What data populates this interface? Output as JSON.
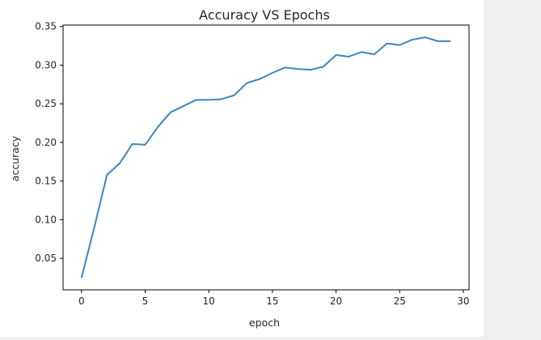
{
  "chart_data": {
    "type": "line",
    "title": "Accuracy VS Epochs",
    "xlabel": "epoch",
    "ylabel": "accuracy",
    "xlim": [
      -1.45,
      30.45
    ],
    "ylim": [
      0.0093,
      0.3518
    ],
    "xticks": [
      "0",
      "5",
      "10",
      "15",
      "20",
      "25",
      "30"
    ],
    "yticks": [
      "0.05",
      "0.10",
      "0.15",
      "0.20",
      "0.25",
      "0.30",
      "0.35"
    ],
    "grid": false,
    "series": [
      {
        "color": "#3a86bf",
        "x": [
          0,
          1,
          2,
          3,
          4,
          5,
          6,
          7,
          8,
          9,
          10,
          11,
          12,
          13,
          14,
          15,
          16,
          17,
          18,
          19,
          20,
          21,
          22,
          23,
          24,
          25,
          26,
          27,
          28,
          29
        ],
        "values": [
          0.025,
          0.09,
          0.158,
          0.173,
          0.198,
          0.197,
          0.22,
          0.239,
          0.247,
          0.255,
          0.255,
          0.256,
          0.261,
          0.277,
          0.282,
          0.29,
          0.297,
          0.295,
          0.294,
          0.298,
          0.313,
          0.311,
          0.317,
          0.314,
          0.328,
          0.326,
          0.333,
          0.336,
          0.331,
          0.331
        ]
      }
    ]
  }
}
